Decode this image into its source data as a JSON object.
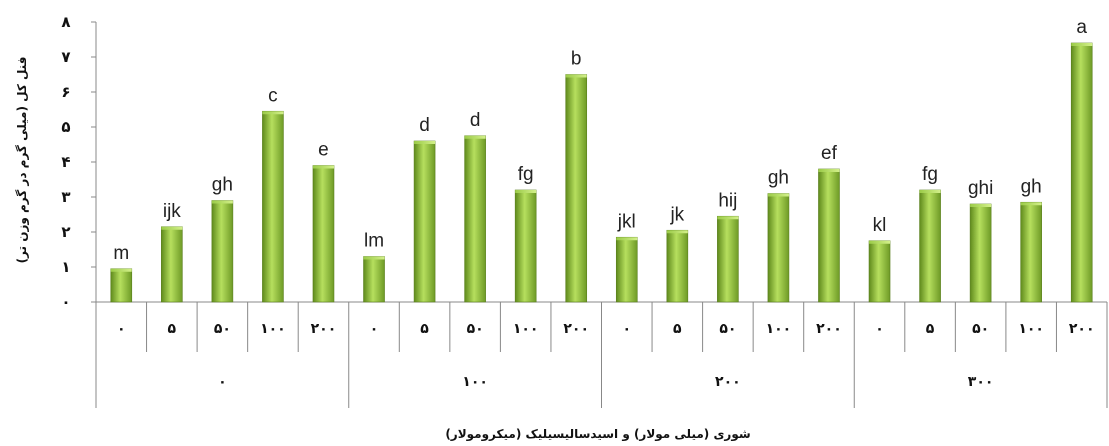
{
  "chart_data": {
    "type": "bar",
    "title": "",
    "ylabel": "فنل کل (میلی گرم در گرم وزن تر)",
    "xlabel": "شوری (میلی مولار) و اسیدسالیسیلیک (میکرومولار)",
    "ylim": [
      0,
      8
    ],
    "yticks": [
      "۰",
      "۱",
      "۲",
      "۳",
      "۴",
      "۵",
      "۶",
      "۷",
      "۸"
    ],
    "groups": [
      {
        "label": "۰",
        "categories": [
          "۰",
          "۵",
          "۵۰",
          "۱۰۰",
          "۲۰۰"
        ]
      },
      {
        "label": "۱۰۰",
        "categories": [
          "۰",
          "۵",
          "۵۰",
          "۱۰۰",
          "۲۰۰"
        ]
      },
      {
        "label": "۲۰۰",
        "categories": [
          "۰",
          "۵",
          "۵۰",
          "۱۰۰",
          "۲۰۰"
        ]
      },
      {
        "label": "۳۰۰",
        "categories": [
          "۰",
          "۵",
          "۵۰",
          "۱۰۰",
          "۲۰۰"
        ]
      }
    ],
    "values": [
      0.95,
      2.15,
      2.9,
      5.45,
      3.9,
      1.3,
      4.6,
      4.75,
      3.2,
      6.5,
      1.85,
      2.05,
      2.45,
      3.1,
      3.8,
      1.75,
      3.2,
      2.8,
      2.85,
      7.4
    ],
    "labels": [
      "m",
      "ijk",
      "gh",
      "c",
      "e",
      "lm",
      "d",
      "d",
      "fg",
      "b",
      "jkl",
      "jk",
      "hij",
      "gh",
      "ef",
      "kl",
      "fg",
      "ghi",
      "gh",
      "a"
    ],
    "bar_color": "#8ab83a",
    "grid": false,
    "legend": "none"
  }
}
